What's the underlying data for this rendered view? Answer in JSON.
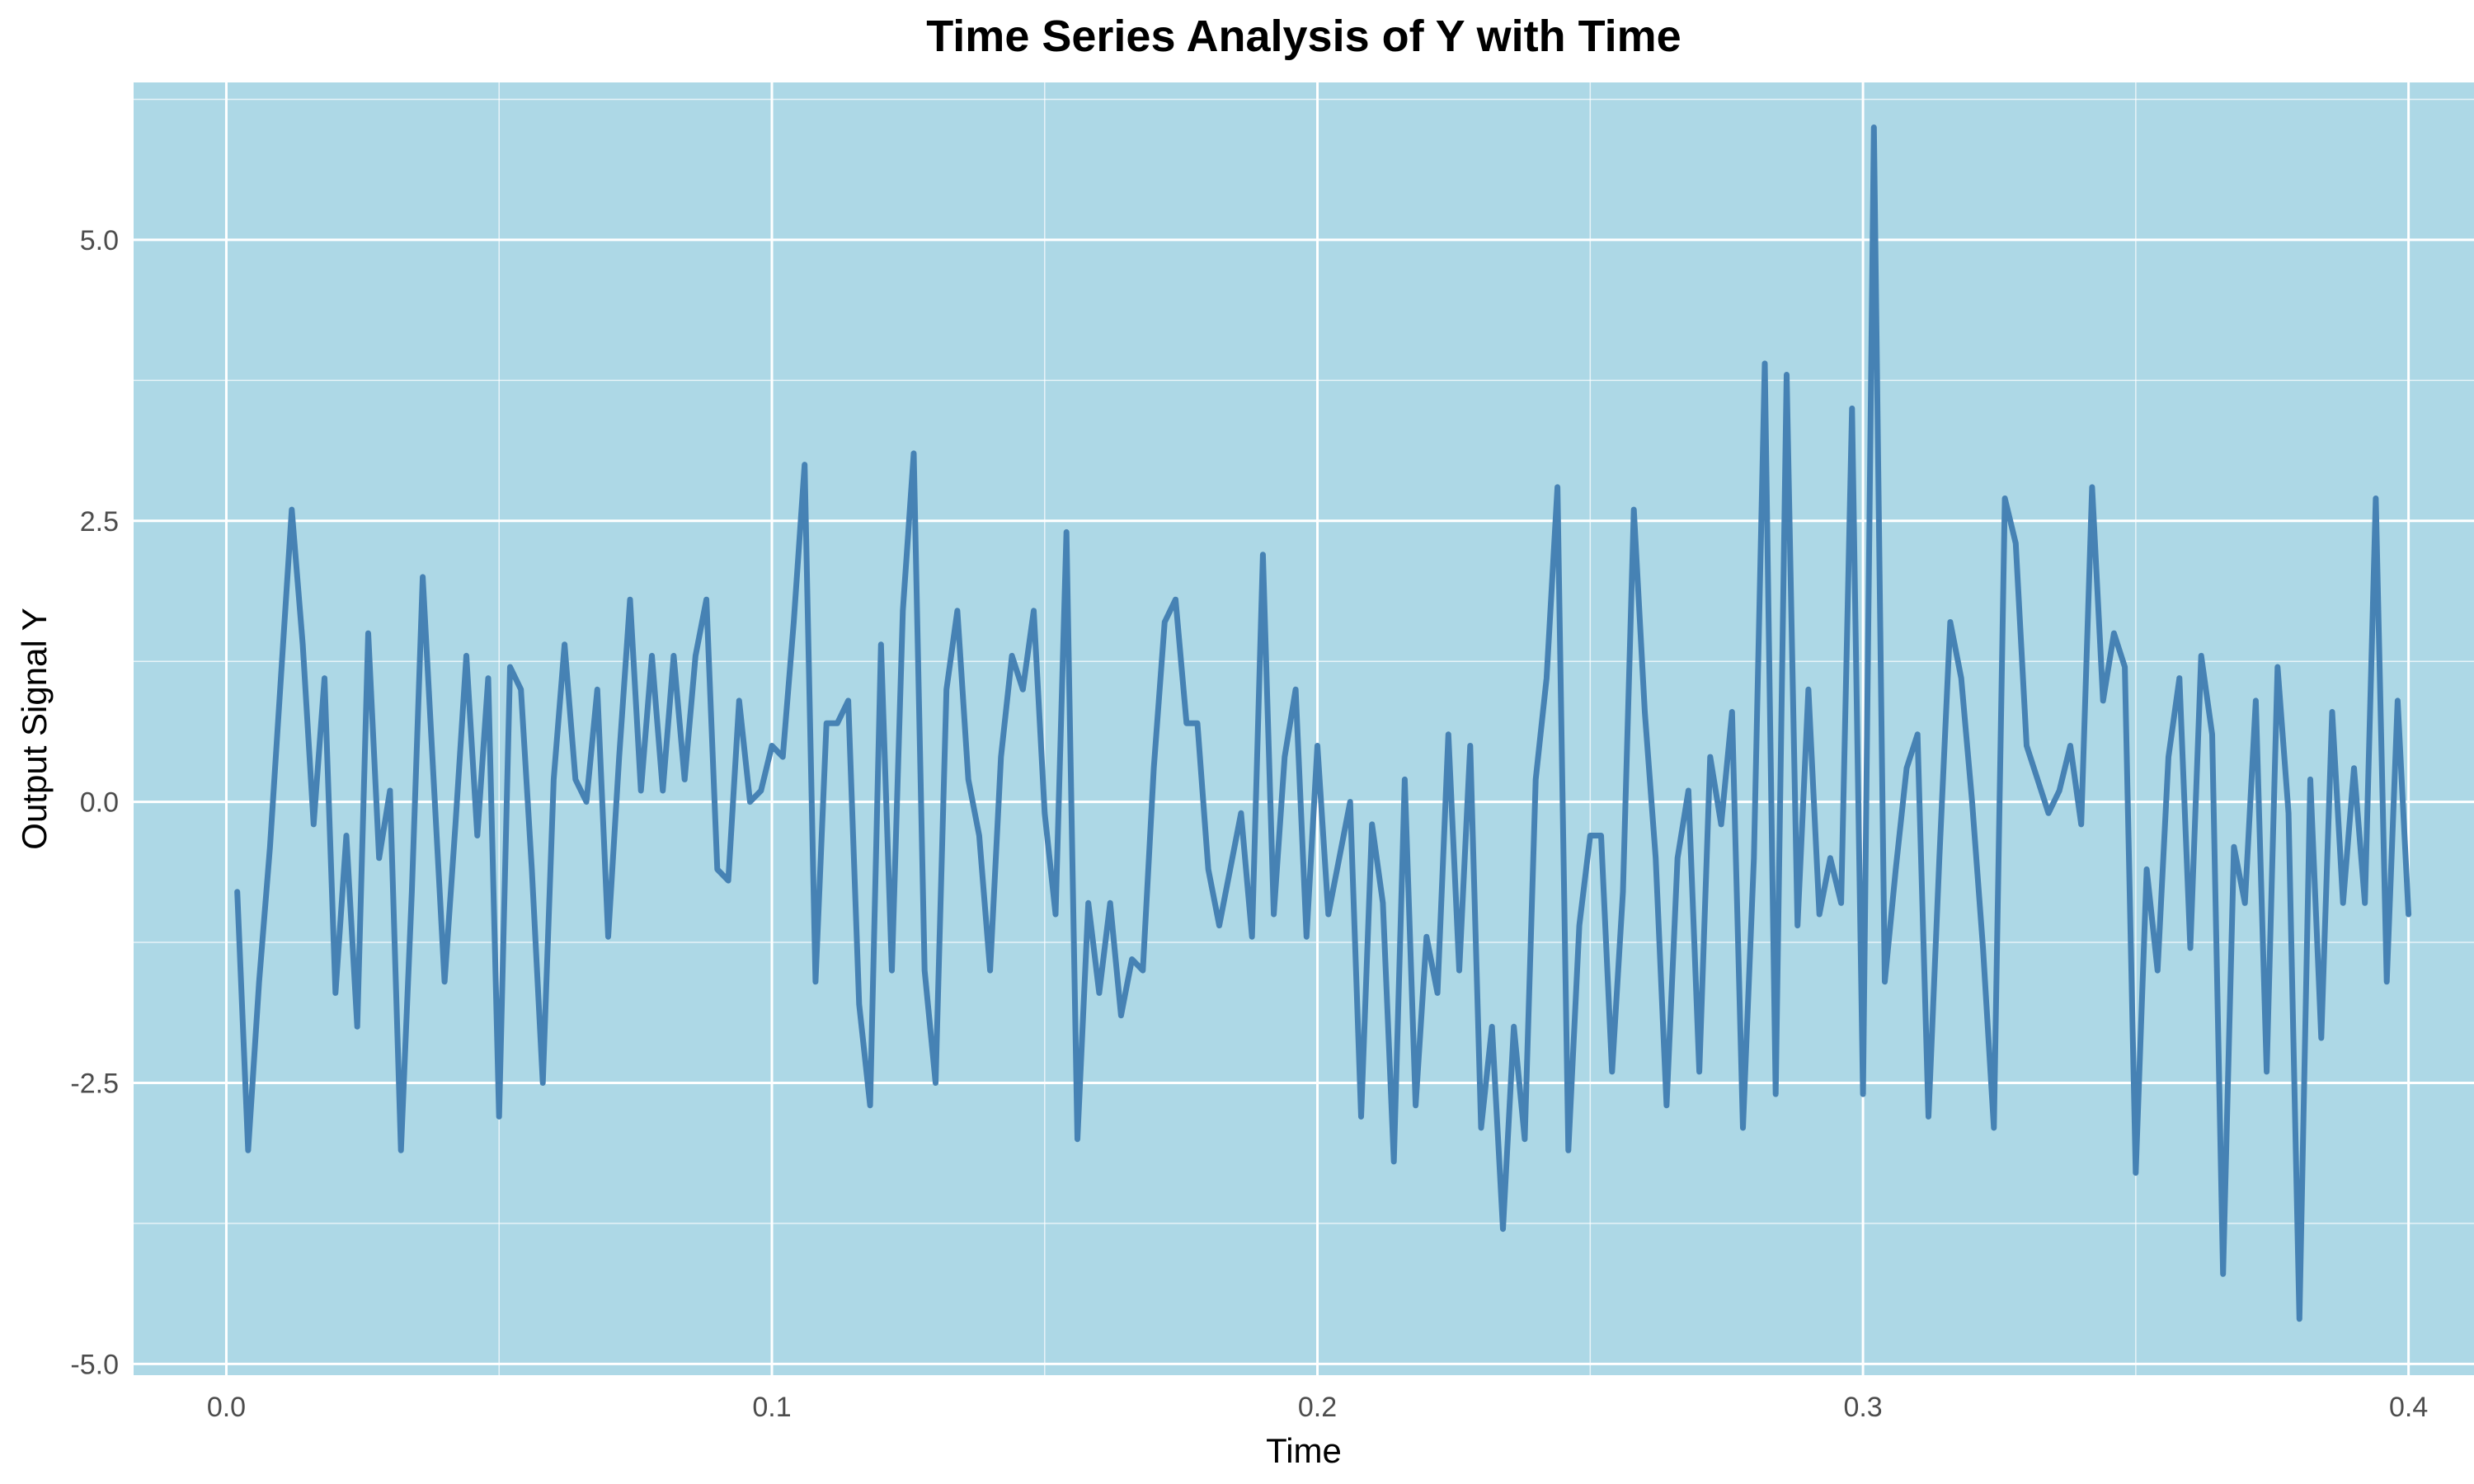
{
  "colors": {
    "panel_background": "#add8e6",
    "grid": "#ffffff",
    "line": "#4682b4",
    "tick_text": "#4d4d4d",
    "title_text": "#000000"
  },
  "chart_data": {
    "type": "line",
    "title": "Time Series Analysis of Y with Time",
    "xlabel": "Time",
    "ylabel": "Output Signal Y",
    "xlim": [
      -0.017,
      0.412
    ],
    "ylim": [
      -5.1,
      6.4
    ],
    "x_ticks": [
      0.0,
      0.1,
      0.2,
      0.3,
      0.4
    ],
    "x_tick_labels": [
      "0.0",
      "0.1",
      "0.2",
      "0.3",
      "0.4"
    ],
    "y_ticks": [
      -5.0,
      -2.5,
      0.0,
      2.5,
      5.0
    ],
    "y_tick_labels": [
      "-5.0",
      "-2.5",
      "0.0",
      "2.5",
      "5.0"
    ],
    "grid": true,
    "legend": "none",
    "x_start": 0.002,
    "x_step": 0.002,
    "series": [
      {
        "values": [
          -0.8,
          -3.1,
          -1.6,
          -0.4,
          1.1,
          2.6,
          1.4,
          -0.2,
          1.1,
          -1.7,
          -0.3,
          -2.0,
          1.5,
          -0.5,
          0.1,
          -3.1,
          -0.8,
          2.0,
          0.2,
          -1.6,
          -0.2,
          1.3,
          -0.3,
          1.1,
          -2.8,
          1.2,
          1.0,
          -0.6,
          -2.5,
          0.2,
          1.4,
          0.2,
          0.0,
          1.0,
          -1.2,
          0.4,
          1.8,
          0.1,
          1.3,
          0.1,
          1.3,
          0.2,
          1.3,
          1.8,
          -0.6,
          -0.7,
          0.9,
          0.0,
          0.1,
          0.5,
          0.4,
          1.6,
          3.0,
          -1.6,
          0.7,
          0.7,
          0.9,
          -1.8,
          -2.7,
          1.4,
          -1.5,
          1.7,
          3.1,
          -1.5,
          -2.5,
          1.0,
          1.7,
          0.2,
          -0.3,
          -1.5,
          0.4,
          1.3,
          1.0,
          1.7,
          -0.1,
          -1.0,
          2.4,
          -3.0,
          -0.9,
          -1.7,
          -0.9,
          -1.9,
          -1.4,
          -1.5,
          0.3,
          1.6,
          1.8,
          0.7,
          0.7,
          -0.6,
          -1.1,
          -0.6,
          -0.1,
          -1.2,
          2.2,
          -1.0,
          0.4,
          1.0,
          -1.2,
          0.5,
          -1.0,
          -0.5,
          0.0,
          -2.8,
          -0.2,
          -0.9,
          -3.2,
          0.2,
          -2.7,
          -1.2,
          -1.7,
          0.6,
          -1.5,
          0.5,
          -2.9,
          -2.0,
          -3.8,
          -2.0,
          -3.0,
          0.2,
          1.1,
          2.8,
          -3.1,
          -1.1,
          -0.3,
          -0.3,
          -2.4,
          -0.8,
          2.6,
          0.8,
          -0.5,
          -2.7,
          -0.5,
          0.1,
          -2.4,
          0.4,
          -0.2,
          0.8,
          -2.9,
          -0.5,
          3.9,
          -2.6,
          3.8,
          -1.1,
          1.0,
          -1.0,
          -0.5,
          -0.9,
          3.5,
          -2.6,
          6.0,
          -1.6,
          -0.6,
          0.3,
          0.6,
          -2.8,
          -0.5,
          1.6,
          1.1,
          0.0,
          -1.3,
          -2.9,
          2.7,
          2.3,
          0.5,
          0.2,
          -0.1,
          0.1,
          0.5,
          -0.2,
          2.8,
          0.9,
          1.5,
          1.2,
          -3.3,
          -0.6,
          -1.5,
          0.4,
          1.1,
          -1.3,
          1.3,
          0.6,
          -4.2,
          -0.4,
          -0.9,
          0.9,
          -2.4,
          1.2,
          -0.1,
          -4.6,
          0.2,
          -2.1,
          0.8,
          -0.9,
          0.3,
          -0.9,
          2.7,
          -1.6,
          0.9,
          -1.0
        ]
      }
    ]
  }
}
